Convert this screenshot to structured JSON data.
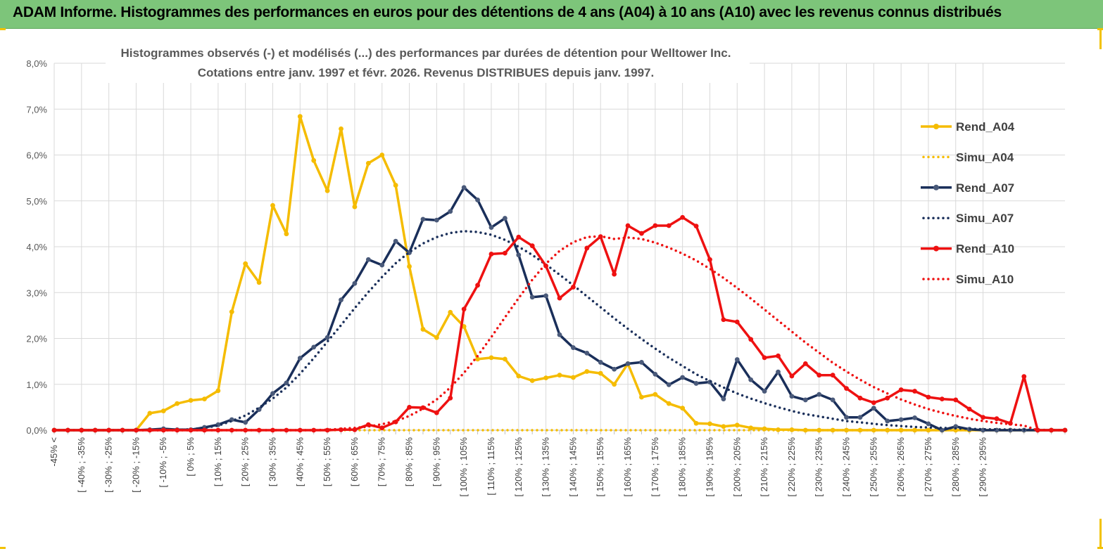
{
  "header": {
    "title": "ADAM Informe. Histogrammes des performances en euros pour des détentions de 4 ans (A04) à 10 ans (A10) avec les revenus connus distribués"
  },
  "chart_data": {
    "type": "line",
    "title": "Histogrammes observés (-) et modélisés (...) des performances par durées de détention pour Welltower Inc.",
    "subtitle": "Cotations entre janv. 1997 et févr. 2026. Revenus DISTRIBUES depuis janv. 1997.",
    "xlabel": "",
    "ylabel": "",
    "ylim": [
      0,
      8
    ],
    "grid": true,
    "legend_position": "right",
    "y_ticks": [
      "0,0%",
      "1,0%",
      "2,0%",
      "3,0%",
      "4,0%",
      "5,0%",
      "6,0%",
      "7,0%",
      "8,0%"
    ],
    "x_tick_labels": [
      "-45% <",
      "[ -40% ; -35%",
      "[ -30% ; -25%",
      "[ -20% ; -15%",
      "[ -10% ; -5%",
      "[ 0% ; 5%",
      "[ 10% ; 15%",
      "[ 20% ; 25%",
      "[ 30% ; 35%",
      "[ 40% ; 45%",
      "[ 50% ; 55%",
      "[ 60% ; 65%",
      "[ 70% ; 75%",
      "[ 80% ; 85%",
      "[ 90% ; 95%",
      "[ 100% ; 105%",
      "[ 110% ; 115%",
      "[ 120% ; 125%",
      "[ 130% ; 135%",
      "[ 140% ; 145%",
      "[ 150% ; 155%",
      "[ 160% ; 165%",
      "[ 170% ; 175%",
      "[ 180% ; 185%",
      "[ 190% ; 195%",
      "[ 200% ; 205%",
      "[ 210% ; 215%",
      "[ 220% ; 225%",
      "[ 230% ; 235%",
      "[ 240% ; 245%",
      "[ 250% ; 255%",
      "[ 260% ; 265%",
      "[ 270% ; 275%",
      "[ 280% ; 285%",
      "[ 290% ; 295%"
    ],
    "series": [
      {
        "name": "Rend_A04",
        "color": "#f5bc00",
        "style": "solid",
        "values": [
          0,
          0,
          0,
          0,
          0,
          0,
          0,
          0.37,
          0.42,
          0.58,
          0.65,
          0.68,
          0.86,
          2.58,
          3.63,
          3.22,
          4.9,
          4.28,
          6.84,
          5.88,
          5.22,
          6.57,
          4.87,
          5.82,
          6.0,
          5.34,
          3.57,
          2.2,
          2.02,
          2.57,
          2.26,
          1.55,
          1.58,
          1.55,
          1.18,
          1.08,
          1.14,
          1.2,
          1.15,
          1.28,
          1.24,
          1.0,
          1.45,
          0.72,
          0.78,
          0.58,
          0.48,
          0.15,
          0.14,
          0.08,
          0.11,
          0.05,
          0.03,
          0.01,
          0.01,
          0,
          0,
          0,
          0,
          0,
          0,
          0,
          0,
          0,
          0,
          0,
          0,
          0,
          0,
          0,
          0,
          0,
          0,
          0,
          0
        ]
      },
      {
        "name": "Simu_A04",
        "color": "#f5bc00",
        "style": "dotted",
        "values": [
          0,
          0,
          0,
          0,
          0,
          0,
          0,
          0,
          0,
          0,
          0,
          0,
          0,
          0,
          0,
          0,
          0,
          0,
          0,
          0,
          0,
          0,
          0,
          0,
          0,
          0,
          0,
          0,
          0,
          0,
          0,
          0,
          0,
          0,
          0,
          0,
          0,
          0,
          0,
          0,
          0,
          0,
          0,
          0,
          0,
          0,
          0,
          0,
          0,
          0,
          0,
          0,
          0,
          0,
          0,
          0,
          0,
          0,
          0,
          0,
          0,
          0,
          0,
          0,
          0,
          0,
          0,
          0,
          0,
          0,
          0,
          0,
          0,
          0,
          0
        ]
      },
      {
        "name": "Rend_A07",
        "color": "#1a2f5a",
        "style": "solid",
        "values": [
          0,
          0,
          0,
          0,
          0,
          0,
          0,
          0.01,
          0.03,
          0.01,
          0.01,
          0.06,
          0.12,
          0.23,
          0.17,
          0.45,
          0.8,
          1.03,
          1.57,
          1.81,
          2.02,
          2.84,
          3.2,
          3.72,
          3.6,
          4.12,
          3.87,
          4.6,
          4.58,
          4.77,
          5.29,
          5.02,
          4.42,
          4.62,
          3.82,
          2.9,
          2.93,
          2.08,
          1.8,
          1.68,
          1.48,
          1.33,
          1.45,
          1.48,
          1.22,
          0.99,
          1.15,
          1.02,
          1.05,
          0.68,
          1.54,
          1.1,
          0.85,
          1.27,
          0.74,
          0.66,
          0.78,
          0.66,
          0.28,
          0.28,
          0.48,
          0.2,
          0.23,
          0.27,
          0.14,
          0,
          0.08,
          0.02,
          0,
          0,
          0,
          0,
          0,
          0,
          0
        ]
      },
      {
        "name": "Simu_A07",
        "color": "#1a2f5a",
        "style": "dotted",
        "values": [
          0,
          0,
          0,
          0,
          0,
          0,
          0,
          0,
          0,
          0.01,
          0.02,
          0.05,
          0.1,
          0.2,
          0.32,
          0.49,
          0.69,
          0.93,
          1.23,
          1.57,
          1.93,
          2.29,
          2.66,
          3.01,
          3.34,
          3.64,
          3.88,
          4.07,
          4.21,
          4.3,
          4.34,
          4.32,
          4.26,
          4.15,
          4.0,
          3.82,
          3.61,
          3.39,
          3.16,
          2.92,
          2.68,
          2.44,
          2.21,
          1.99,
          1.78,
          1.58,
          1.4,
          1.22,
          1.07,
          0.93,
          0.8,
          0.69,
          0.59,
          0.5,
          0.42,
          0.35,
          0.3,
          0.25,
          0.2,
          0.17,
          0.14,
          0.11,
          0.09,
          0.07,
          0.06,
          0.05,
          0.04,
          0.03,
          0.02,
          0.02,
          0.01,
          0.01,
          0.01,
          0,
          0
        ]
      },
      {
        "name": "Rend_A10",
        "color": "#ee1111",
        "style": "solid",
        "values": [
          0,
          0,
          0,
          0,
          0,
          0,
          0,
          0,
          0,
          0,
          0,
          0,
          0,
          0,
          0,
          0,
          0,
          0,
          0,
          0,
          0,
          0.01,
          0.01,
          0.12,
          0.05,
          0.18,
          0.5,
          0.49,
          0.38,
          0.7,
          2.64,
          3.16,
          3.84,
          3.86,
          4.21,
          4.02,
          3.58,
          2.88,
          3.12,
          3.97,
          4.22,
          3.4,
          4.46,
          4.29,
          4.46,
          4.46,
          4.64,
          4.45,
          3.72,
          2.41,
          2.36,
          1.98,
          1.58,
          1.62,
          1.18,
          1.45,
          1.2,
          1.2,
          0.91,
          0.7,
          0.6,
          0.7,
          0.88,
          0.85,
          0.72,
          0.68,
          0.66,
          0.46,
          0.28,
          0.25,
          0.15,
          1.17,
          0,
          0,
          0
        ]
      },
      {
        "name": "Simu_A10",
        "color": "#ee1111",
        "style": "dotted",
        "values": [
          0,
          0,
          0,
          0,
          0,
          0,
          0,
          0,
          0,
          0,
          0,
          0,
          0,
          0,
          0,
          0,
          0,
          0,
          0,
          0,
          0.01,
          0.03,
          0.05,
          0.08,
          0.13,
          0.2,
          0.31,
          0.47,
          0.67,
          0.93,
          1.25,
          1.62,
          2.03,
          2.46,
          2.88,
          3.28,
          3.63,
          3.91,
          4.1,
          4.21,
          4.23,
          4.17,
          4.2,
          4.17,
          4.09,
          3.98,
          3.85,
          3.7,
          3.52,
          3.32,
          3.1,
          2.87,
          2.63,
          2.39,
          2.15,
          1.91,
          1.69,
          1.47,
          1.28,
          1.1,
          0.94,
          0.8,
          0.67,
          0.56,
          0.46,
          0.38,
          0.31,
          0.25,
          0.2,
          0.16,
          0.13,
          0.1,
          0,
          0,
          0
        ]
      }
    ]
  }
}
